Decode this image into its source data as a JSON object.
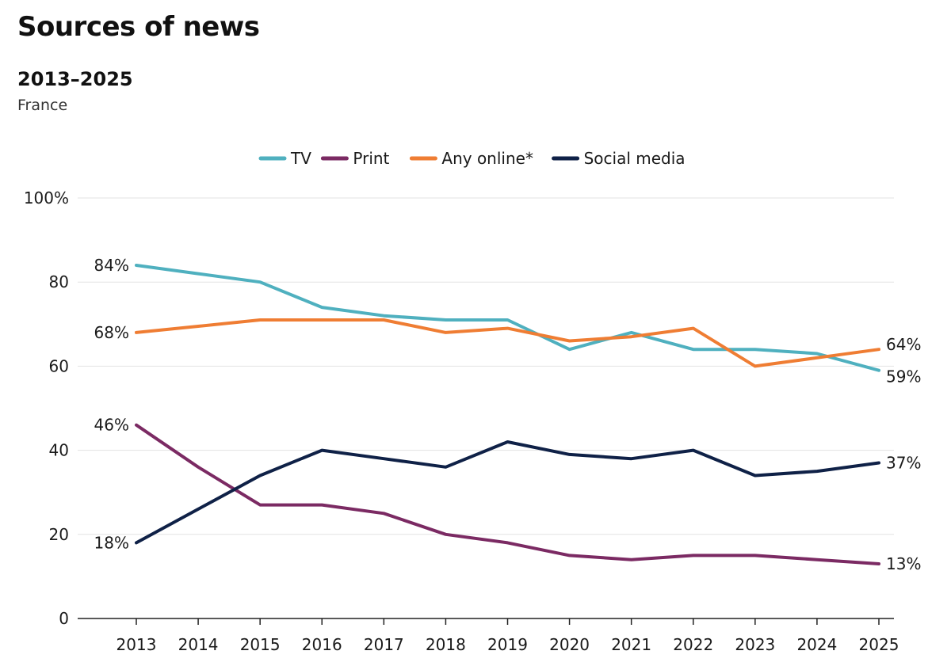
{
  "title": "Sources of news",
  "subtitle": "2013–2025",
  "region": "France",
  "chart_data": {
    "type": "line",
    "title": "Sources of news",
    "subtitle": "2013–2025",
    "x": [
      "2013",
      "2014",
      "2015",
      "2016",
      "2017",
      "2018",
      "2019",
      "2020",
      "2021",
      "2022",
      "2023",
      "2024",
      "2025"
    ],
    "ylim": [
      0,
      100
    ],
    "yticks": [
      0,
      20,
      40,
      60,
      80,
      100
    ],
    "ytick_labels": [
      "0",
      "20",
      "40",
      "60",
      "80",
      "100%"
    ],
    "grid": true,
    "legend_placement": "top-center",
    "series": [
      {
        "name": "TV",
        "color": "#4fb0bf",
        "values": [
          84,
          82,
          80,
          74,
          72,
          71,
          71,
          64,
          68,
          64,
          64,
          63,
          59
        ],
        "start_label": "84%",
        "end_label": "59%"
      },
      {
        "name": "Print",
        "color": "#7b2a63",
        "values": [
          46,
          36,
          27,
          27,
          25,
          20,
          18,
          15,
          14,
          15,
          15,
          14,
          13
        ],
        "start_label": "46%",
        "end_label": "13%"
      },
      {
        "name": "Any online*",
        "color": "#ef7d33",
        "values": [
          68,
          69.5,
          71,
          71,
          71,
          68,
          69,
          66,
          67,
          69,
          60,
          62,
          64
        ],
        "start_label": "68%",
        "end_label": "64%"
      },
      {
        "name": "Social media",
        "color": "#0f2147",
        "values": [
          18,
          26,
          34,
          40,
          38,
          36,
          42,
          39,
          38,
          40,
          34,
          35,
          37
        ],
        "start_label": "18%",
        "end_label": "37%"
      }
    ]
  }
}
